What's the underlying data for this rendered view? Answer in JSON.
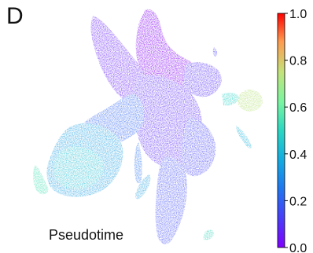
{
  "panel_label": "D",
  "chart_data": {
    "type": "scatter",
    "title": "",
    "annotation": "Pseudotime",
    "xlabel": "",
    "ylabel": "",
    "colorbar": {
      "colormap": "rainbow",
      "range": [
        0.0,
        1.0
      ],
      "ticks": [
        0.0,
        0.2,
        0.4,
        0.6,
        0.8,
        1.0
      ],
      "tick_labels": [
        "0.0",
        "0.2",
        "0.4",
        "0.6",
        "0.8",
        "1.0"
      ],
      "low_color": "#7f00ff",
      "high_color": "#ff0000"
    },
    "axes_visible": false,
    "grid": false,
    "clusters": [
      {
        "region": "central-top",
        "pseudotime": 0.03
      },
      {
        "region": "upper-left-arm",
        "pseudotime": 0.1
      },
      {
        "region": "center-body",
        "pseudotime": 0.06
      },
      {
        "region": "lower-left-blob",
        "pseudotime": 0.38
      },
      {
        "region": "lower-stem",
        "pseudotime": 0.18
      },
      {
        "region": "right-satellite",
        "pseudotime": 0.58
      },
      {
        "region": "far-left-tip",
        "pseudotime": 0.45
      },
      {
        "region": "bottom-right-small",
        "pseudotime": 0.42
      }
    ]
  }
}
